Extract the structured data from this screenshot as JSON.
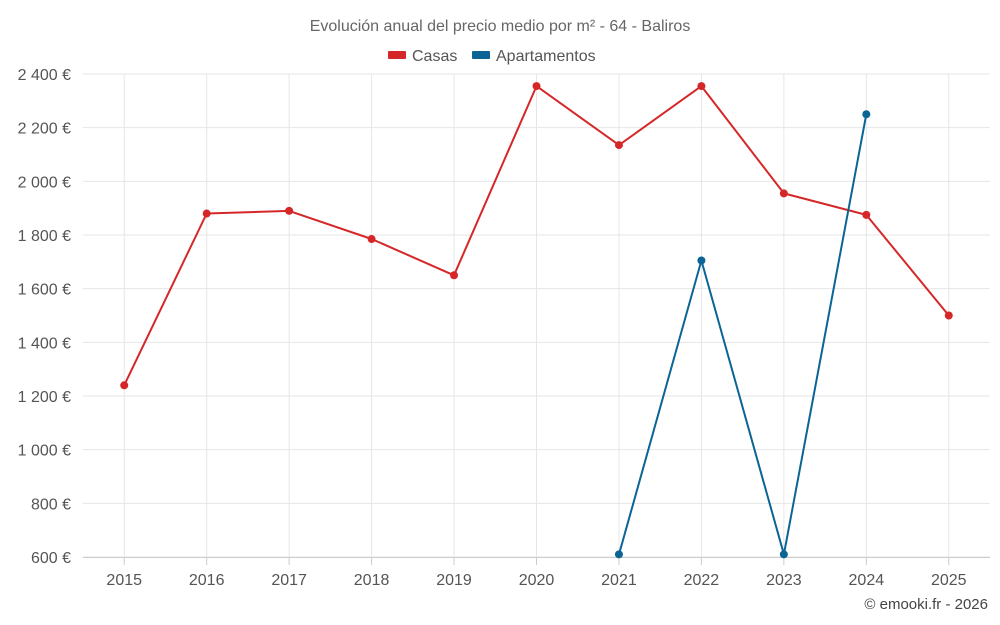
{
  "chart_data": {
    "type": "line",
    "title": "Evolución anual del precio medio por m² - 64 - Baliros",
    "categories": [
      "2015",
      "2016",
      "2017",
      "2018",
      "2019",
      "2020",
      "2021",
      "2022",
      "2023",
      "2024",
      "2025"
    ],
    "ylim": [
      600,
      2400
    ],
    "yticks": [
      600,
      800,
      1000,
      1200,
      1400,
      1600,
      1800,
      2000,
      2200,
      2400
    ],
    "ytick_labels": [
      "600 €",
      "800 €",
      "1 000 €",
      "1 200 €",
      "1 400 €",
      "1 600 €",
      "1 800 €",
      "2 000 €",
      "2 200 €",
      "2 400 €"
    ],
    "grid": true,
    "legend_position": "top-center",
    "series": [
      {
        "name": "Casas",
        "color": "#d62728",
        "values": [
          1240,
          1880,
          1890,
          1785,
          1650,
          2355,
          2135,
          2355,
          1955,
          1875,
          1500
        ]
      },
      {
        "name": "Apartamentos",
        "color": "#0a6596",
        "values": [
          null,
          null,
          null,
          null,
          null,
          null,
          610,
          1705,
          610,
          2250,
          null
        ]
      }
    ]
  },
  "credit": "© emooki.fr - 2026"
}
